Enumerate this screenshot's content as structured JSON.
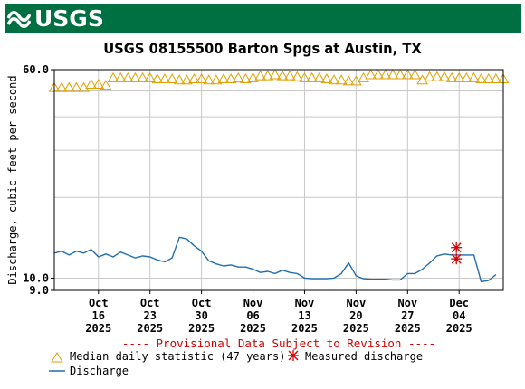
{
  "brand": {
    "logo_text": "USGS",
    "banner_color": "#006f41"
  },
  "chart_data": {
    "type": "line",
    "title": "USGS 08155500 Barton Spgs at Austin, TX",
    "ylabel": "Discharge, cubic feet per second",
    "y_scale": "log",
    "ylim": [
      9.0,
      60.0
    ],
    "y_ticks": [
      {
        "value": 60,
        "label": "60.0"
      },
      {
        "value": 10,
        "label": "10.0"
      },
      {
        "value": 9,
        "label": "9.0"
      }
    ],
    "x_ticks": [
      {
        "date": "2025-10-16",
        "line1": "Oct",
        "line2": "16",
        "line3": "2025"
      },
      {
        "date": "2025-10-23",
        "line1": "Oct",
        "line2": "23",
        "line3": "2025"
      },
      {
        "date": "2025-10-30",
        "line1": "Oct",
        "line2": "30",
        "line3": "2025"
      },
      {
        "date": "2025-11-06",
        "line1": "Nov",
        "line2": "06",
        "line3": "2025"
      },
      {
        "date": "2025-11-13",
        "line1": "Nov",
        "line2": "13",
        "line3": "2025"
      },
      {
        "date": "2025-11-20",
        "line1": "Nov",
        "line2": "20",
        "line3": "2025"
      },
      {
        "date": "2025-11-27",
        "line1": "Nov",
        "line2": "27",
        "line3": "2025"
      },
      {
        "date": "2025-12-04",
        "line1": "Dec",
        "line2": "04",
        "line3": "2025"
      }
    ],
    "xlim": [
      "2025-10-10",
      "2025-12-10"
    ],
    "provisional_note": "---- Provisional Data Subject to Revision ----",
    "grid": true,
    "legend": "bottom",
    "colors": {
      "median": "#e0a000",
      "discharge": "#1f6fb0",
      "measured": "#d00000",
      "note": "#d00000",
      "grid": "#c8c8c8"
    },
    "series": [
      {
        "name": "Median daily statistic (47 years)",
        "kind": "triangle-markers",
        "points": [
          [
            "2025-10-10",
            51.5
          ],
          [
            "2025-10-11",
            51.5
          ],
          [
            "2025-10-12",
            51.5
          ],
          [
            "2025-10-13",
            51.5
          ],
          [
            "2025-10-14",
            51.5
          ],
          [
            "2025-10-15",
            53
          ],
          [
            "2025-10-16",
            53
          ],
          [
            "2025-10-17",
            52.5
          ],
          [
            "2025-10-18",
            56
          ],
          [
            "2025-10-19",
            56
          ],
          [
            "2025-10-20",
            56
          ],
          [
            "2025-10-21",
            56
          ],
          [
            "2025-10-22",
            56
          ],
          [
            "2025-10-23",
            56
          ],
          [
            "2025-10-24",
            55.5
          ],
          [
            "2025-10-25",
            55.5
          ],
          [
            "2025-10-26",
            55.5
          ],
          [
            "2025-10-27",
            55
          ],
          [
            "2025-10-28",
            55
          ],
          [
            "2025-10-29",
            55.5
          ],
          [
            "2025-10-30",
            55.5
          ],
          [
            "2025-10-31",
            55
          ],
          [
            "2025-11-01",
            55
          ],
          [
            "2025-11-02",
            55.5
          ],
          [
            "2025-11-03",
            55.5
          ],
          [
            "2025-11-04",
            56
          ],
          [
            "2025-11-05",
            55.5
          ],
          [
            "2025-11-06",
            56
          ],
          [
            "2025-11-07",
            57
          ],
          [
            "2025-11-08",
            57
          ],
          [
            "2025-11-09",
            57.5
          ],
          [
            "2025-11-10",
            57
          ],
          [
            "2025-11-11",
            57
          ],
          [
            "2025-11-12",
            56.5
          ],
          [
            "2025-11-13",
            56
          ],
          [
            "2025-11-14",
            56
          ],
          [
            "2025-11-15",
            56
          ],
          [
            "2025-11-16",
            55.5
          ],
          [
            "2025-11-17",
            55
          ],
          [
            "2025-11-18",
            55
          ],
          [
            "2025-11-19",
            54.5
          ],
          [
            "2025-11-20",
            54.5
          ],
          [
            "2025-11-21",
            56
          ],
          [
            "2025-11-22",
            57.5
          ],
          [
            "2025-11-23",
            57.5
          ],
          [
            "2025-11-24",
            57.5
          ],
          [
            "2025-11-25",
            57.5
          ],
          [
            "2025-11-26",
            57.5
          ],
          [
            "2025-11-27",
            57.5
          ],
          [
            "2025-11-28",
            57.5
          ],
          [
            "2025-11-29",
            55
          ],
          [
            "2025-11-30",
            56.5
          ],
          [
            "2025-12-01",
            56.5
          ],
          [
            "2025-12-02",
            56.5
          ],
          [
            "2025-12-03",
            56
          ],
          [
            "2025-12-04",
            56
          ],
          [
            "2025-12-05",
            56
          ],
          [
            "2025-12-06",
            56
          ],
          [
            "2025-12-07",
            55.5
          ],
          [
            "2025-12-08",
            55.5
          ],
          [
            "2025-12-09",
            55.5
          ],
          [
            "2025-12-10",
            55.5
          ]
        ]
      },
      {
        "name": "Discharge",
        "kind": "line",
        "points": [
          [
            "2025-10-10",
            12.4
          ],
          [
            "2025-10-11",
            12.6
          ],
          [
            "2025-10-12",
            12.2
          ],
          [
            "2025-10-13",
            12.6
          ],
          [
            "2025-10-14",
            12.4
          ],
          [
            "2025-10-15",
            12.8
          ],
          [
            "2025-10-16",
            12.0
          ],
          [
            "2025-10-17",
            12.3
          ],
          [
            "2025-10-18",
            12.0
          ],
          [
            "2025-10-19",
            12.5
          ],
          [
            "2025-10-20",
            12.2
          ],
          [
            "2025-10-21",
            11.9
          ],
          [
            "2025-10-22",
            12.1
          ],
          [
            "2025-10-23",
            12.0
          ],
          [
            "2025-10-24",
            11.7
          ],
          [
            "2025-10-25",
            11.5
          ],
          [
            "2025-10-26",
            11.9
          ],
          [
            "2025-10-27",
            14.2
          ],
          [
            "2025-10-28",
            14.0
          ],
          [
            "2025-10-29",
            13.2
          ],
          [
            "2025-10-30",
            12.6
          ],
          [
            "2025-10-31",
            11.6
          ],
          [
            "2025-11-01",
            11.3
          ],
          [
            "2025-11-02",
            11.1
          ],
          [
            "2025-11-03",
            11.2
          ],
          [
            "2025-11-04",
            11.0
          ],
          [
            "2025-11-05",
            11.0
          ],
          [
            "2025-11-06",
            10.8
          ],
          [
            "2025-11-07",
            10.5
          ],
          [
            "2025-11-08",
            10.6
          ],
          [
            "2025-11-09",
            10.4
          ],
          [
            "2025-11-10",
            10.7
          ],
          [
            "2025-11-11",
            10.5
          ],
          [
            "2025-11-12",
            10.4
          ],
          [
            "2025-11-13",
            10.0
          ],
          [
            "2025-11-14",
            9.95
          ],
          [
            "2025-11-15",
            9.95
          ],
          [
            "2025-11-16",
            9.95
          ],
          [
            "2025-11-17",
            10.0
          ],
          [
            "2025-11-18",
            10.4
          ],
          [
            "2025-11-19",
            11.4
          ],
          [
            "2025-11-20",
            10.2
          ],
          [
            "2025-11-21",
            9.95
          ],
          [
            "2025-11-22",
            9.9
          ],
          [
            "2025-11-23",
            9.9
          ],
          [
            "2025-11-24",
            9.9
          ],
          [
            "2025-11-25",
            9.85
          ],
          [
            "2025-11-26",
            9.85
          ],
          [
            "2025-11-27",
            10.4
          ],
          [
            "2025-11-28",
            10.4
          ],
          [
            "2025-11-29",
            10.8
          ],
          [
            "2025-11-30",
            11.4
          ],
          [
            "2025-12-01",
            12.1
          ],
          [
            "2025-12-02",
            12.3
          ],
          [
            "2025-12-03",
            12.2
          ],
          [
            "2025-12-04",
            12.2
          ],
          [
            "2025-12-05",
            12.2
          ],
          [
            "2025-12-06",
            12.2
          ],
          [
            "2025-12-07",
            9.7
          ],
          [
            "2025-12-08",
            9.8
          ],
          [
            "2025-12-09",
            10.3
          ]
        ]
      },
      {
        "name": "Measured discharge",
        "kind": "asterisk-markers",
        "points": [
          [
            "2025-12-04",
            13.0
          ],
          [
            "2025-12-04",
            11.8
          ]
        ]
      }
    ]
  }
}
